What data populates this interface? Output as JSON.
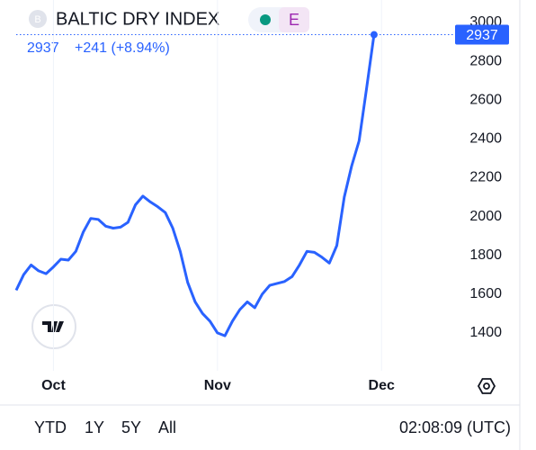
{
  "chart_data": {
    "type": "line",
    "title": "BALTIC DRY INDEX",
    "symbol_icon": "B",
    "badge": "E",
    "change": "+241 (+8.94%)",
    "categories": [
      null,
      null,
      null,
      null,
      null,
      "Oct",
      null,
      null,
      null,
      null,
      null,
      null,
      null,
      null,
      null,
      null,
      null,
      null,
      null,
      null,
      null,
      null,
      null,
      null,
      null,
      null,
      null,
      "Nov",
      null,
      null,
      null,
      null,
      null,
      null,
      null,
      null,
      null,
      null,
      null,
      null,
      null,
      null,
      null,
      null,
      null,
      null,
      null,
      null,
      null,
      "Dec"
    ],
    "series": [
      {
        "name": "BALTIC DRY INDEX",
        "color": "#2962ff",
        "values": [
          1620,
          1700,
          1750,
          1720,
          1705,
          1740,
          1780,
          1775,
          1820,
          1920,
          1990,
          1985,
          1950,
          1940,
          1945,
          1970,
          2060,
          2105,
          2075,
          2050,
          2020,
          1940,
          1820,
          1660,
          1560,
          1500,
          1460,
          1400,
          1385,
          1460,
          1520,
          1560,
          1530,
          1600,
          1645,
          1655,
          1665,
          1690,
          1750,
          1820,
          1815,
          1790,
          1760,
          1850,
          2100,
          2260,
          2390,
          2660,
          2937,
          null
        ]
      }
    ],
    "ylim": [
      1200,
      3100
    ],
    "yticks": [
      1400,
      1600,
      1800,
      2000,
      2200,
      2400,
      2600,
      2800,
      3000
    ],
    "grid": true,
    "ranges": [
      "YTD",
      "1Y",
      "5Y",
      "All"
    ],
    "time": "02:08:09 (UTC)"
  }
}
